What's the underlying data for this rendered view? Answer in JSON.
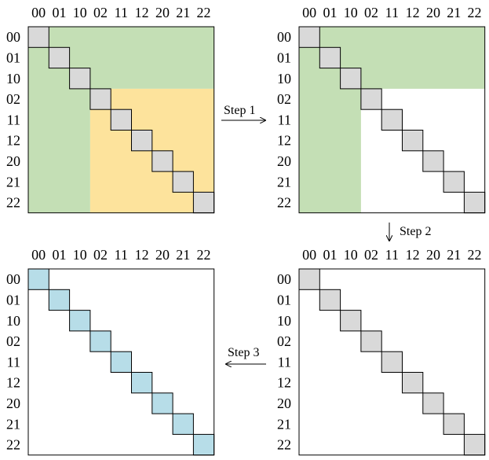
{
  "labels": [
    "00",
    "01",
    "10",
    "02",
    "11",
    "12",
    "20",
    "21",
    "22"
  ],
  "colors": {
    "diag_gray": "#d9d9d9",
    "diag_blue": "#b7dde8",
    "green": "#c4dfb5",
    "yellow": "#fde39c",
    "border": "#000000",
    "white": "#ffffff"
  },
  "panels": [
    {
      "id": "initial",
      "diag_color": "gray",
      "green_block": 3,
      "yellow_block": true
    },
    {
      "id": "after-step1",
      "diag_color": "gray",
      "green_block": 3,
      "yellow_block": false
    },
    {
      "id": "after-step2",
      "diag_color": "gray",
      "green_block": 0,
      "yellow_block": false
    },
    {
      "id": "after-step3",
      "diag_color": "blue",
      "green_block": 0,
      "yellow_block": false
    }
  ],
  "arrows": [
    {
      "id": "step1",
      "label": "Step 1",
      "direction": "right"
    },
    {
      "id": "step2",
      "label": "Step 2",
      "direction": "down"
    },
    {
      "id": "step3",
      "label": "Step 3",
      "direction": "left"
    }
  ]
}
